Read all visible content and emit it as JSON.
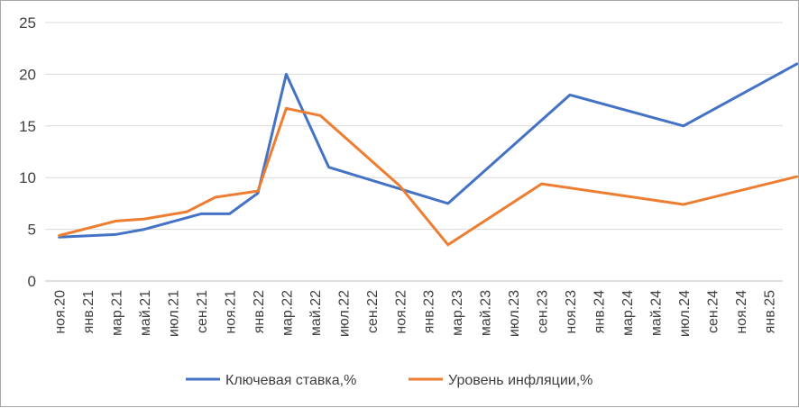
{
  "chart_data": {
    "type": "line",
    "categories": [
      "ноя.20",
      "янв.21",
      "мар.21",
      "май.21",
      "июл.21",
      "сен.21",
      "ноя.21",
      "янв.22",
      "мар.22",
      "май.22",
      "июл.22",
      "сен.22",
      "ноя.22",
      "янв.23",
      "мар.23",
      "май.23",
      "июл.23",
      "сен.23",
      "ноя.23",
      "янв.24",
      "мар.24",
      "май.24",
      "июл.24",
      "сен.24",
      "ноя.24",
      "янв.25"
    ],
    "series": [
      {
        "name": "Ключевая ставка,%",
        "color": "#4472C4",
        "points": [
          [
            0,
            4.25
          ],
          [
            2,
            4.5
          ],
          [
            3,
            5.0
          ],
          [
            5,
            6.5
          ],
          [
            6,
            6.5
          ],
          [
            7,
            8.5
          ],
          [
            8,
            20.0
          ],
          [
            9.5,
            11.0
          ],
          [
            13.7,
            7.5
          ],
          [
            18,
            18.0
          ],
          [
            22,
            15.0
          ],
          [
            26,
            21.0
          ]
        ]
      },
      {
        "name": "Уровень инфляции,%",
        "color": "#ED7D31",
        "points": [
          [
            0,
            4.4
          ],
          [
            2,
            5.8
          ],
          [
            3,
            6.0
          ],
          [
            4.5,
            6.7
          ],
          [
            5.5,
            8.1
          ],
          [
            7,
            8.7
          ],
          [
            8,
            16.7
          ],
          [
            9.2,
            16.0
          ],
          [
            12,
            9.2
          ],
          [
            13.7,
            3.5
          ],
          [
            17,
            9.4
          ],
          [
            22,
            7.4
          ],
          [
            26,
            10.1
          ]
        ]
      }
    ],
    "ylim": [
      0,
      25
    ],
    "yticks": [
      0,
      5,
      10,
      15,
      20,
      25
    ],
    "grid": true,
    "legend_position": "bottom"
  }
}
